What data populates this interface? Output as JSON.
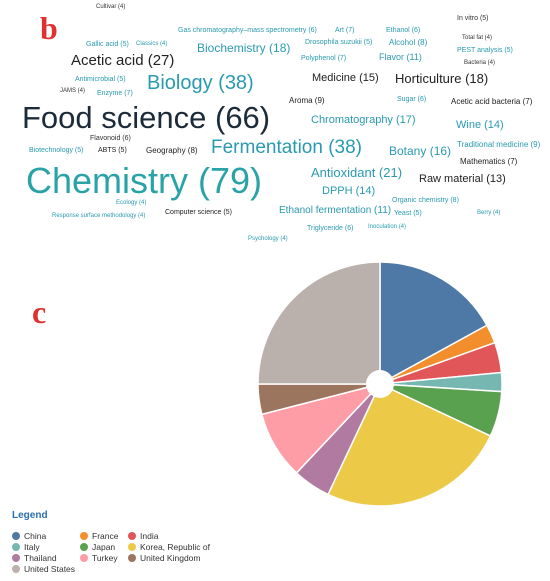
{
  "panel_b": {
    "label": "b",
    "words": [
      {
        "text": "Cultivar (4)",
        "color": "#333333"
      },
      {
        "text": "Gas chromatography–mass spectrometry (6)",
        "color": "#2a9ab0"
      },
      {
        "text": "Art (7)",
        "color": "#2a9ab0"
      },
      {
        "text": "Ethanol (6)",
        "color": "#2a9ab0"
      },
      {
        "text": "In vitro (5)",
        "color": "#333333"
      },
      {
        "text": "Gallic acid (5)",
        "color": "#2a9ab0"
      },
      {
        "text": "Classics (4)",
        "color": "#2a9ab0"
      },
      {
        "text": "Biochemistry (18)",
        "color": "#2a9ab0"
      },
      {
        "text": "Drosophila suzukii (5)",
        "color": "#2a9ab0"
      },
      {
        "text": "Alcohol (8)",
        "color": "#2a9ab0"
      },
      {
        "text": "Total fat (4)",
        "color": "#333333"
      },
      {
        "text": "PEST analysis (5)",
        "color": "#2a9ab0"
      },
      {
        "text": "Acetic acid (27)",
        "color": "#222222"
      },
      {
        "text": "Polyphenol (7)",
        "color": "#2a9ab0"
      },
      {
        "text": "Flavor (11)",
        "color": "#2a9ab0"
      },
      {
        "text": "Bacteria (4)",
        "color": "#333333"
      },
      {
        "text": "Antimicrobial (5)",
        "color": "#2a9ab0"
      },
      {
        "text": "Medicine (15)",
        "color": "#222222"
      },
      {
        "text": "Horticulture (18)",
        "color": "#222222"
      },
      {
        "text": "Biology (38)",
        "color": "#2a9ab0"
      },
      {
        "text": "JAMS (4)",
        "color": "#333333"
      },
      {
        "text": "Enzyme (7)",
        "color": "#2a9ab0"
      },
      {
        "text": "Aroma (9)",
        "color": "#222222"
      },
      {
        "text": "Sugar (6)",
        "color": "#2a9ab0"
      },
      {
        "text": "Acetic acid bacteria (7)",
        "color": "#222222"
      },
      {
        "text": "Food science (66)",
        "color": "#1c2b3a"
      },
      {
        "text": "Chromatography (17)",
        "color": "#2a9ab0"
      },
      {
        "text": "Wine (14)",
        "color": "#2a9ab0"
      },
      {
        "text": "Flavonoid (6)",
        "color": "#333333"
      },
      {
        "text": "Traditional medicine (9)",
        "color": "#2a9ab0"
      },
      {
        "text": "Biotechnology (5)",
        "color": "#2a9ab0"
      },
      {
        "text": "ABTS (5)",
        "color": "#222222"
      },
      {
        "text": "Geography (8)",
        "color": "#222222"
      },
      {
        "text": "Fermentation (38)",
        "color": "#2a9ab0"
      },
      {
        "text": "Botany (16)",
        "color": "#2a9ab0"
      },
      {
        "text": "Mathematics (7)",
        "color": "#222222"
      },
      {
        "text": "Chemistry (79)",
        "color": "#2aa3a8"
      },
      {
        "text": "Antioxidant (21)",
        "color": "#2a9ab0"
      },
      {
        "text": "Raw material (13)",
        "color": "#222222"
      },
      {
        "text": "DPPH (14)",
        "color": "#2a9ab0"
      },
      {
        "text": "Organic chemistry (8)",
        "color": "#2a9ab0"
      },
      {
        "text": "Ecology (4)",
        "color": "#2a9ab0"
      },
      {
        "text": "Computer science (5)",
        "color": "#222222"
      },
      {
        "text": "Ethanol fermentation (11)",
        "color": "#2a9ab0"
      },
      {
        "text": "Yeast (5)",
        "color": "#2a9ab0"
      },
      {
        "text": "Berry (4)",
        "color": "#2a9ab0"
      },
      {
        "text": "Response surface methodology (4)",
        "color": "#2a9ab0"
      },
      {
        "text": "Triglyceride (6)",
        "color": "#2a9ab0"
      },
      {
        "text": "Inoculation (4)",
        "color": "#2a9ab0"
      },
      {
        "text": "Psychology (4)",
        "color": "#2a9ab0"
      }
    ]
  },
  "panel_c": {
    "label": "c",
    "legend_title": "Legend"
  },
  "chart_data": {
    "type": "pie",
    "style": "donut, small center hole",
    "title": "",
    "legend_placement": "bottom-left",
    "categories": [
      "China",
      "France",
      "India",
      "Italy",
      "Japan",
      "Korea, Republic of",
      "Thailand",
      "Turkey",
      "United Kingdom",
      "United States"
    ],
    "values": [
      17,
      2.5,
      4,
      2.5,
      6,
      25,
      5,
      9,
      4,
      25
    ],
    "colors": [
      "#4e79a7",
      "#f28e2b",
      "#e15759",
      "#76b7b2",
      "#59a14f",
      "#edc948",
      "#b07aa1",
      "#ff9da7",
      "#9c755f",
      "#bab0ac"
    ]
  }
}
